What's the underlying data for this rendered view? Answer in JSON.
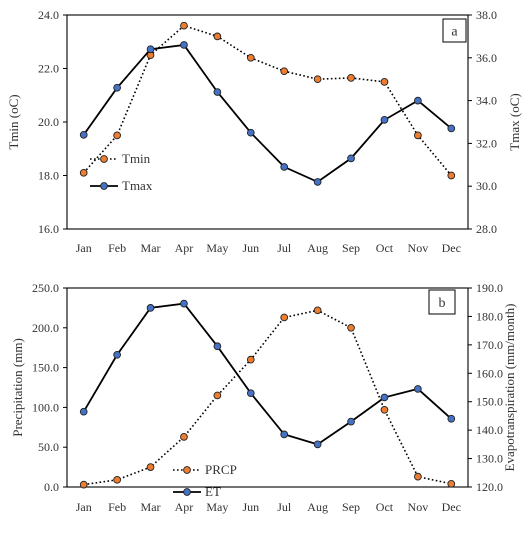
{
  "chart_data": [
    {
      "type": "line",
      "panel_label": "a",
      "categories": [
        "Jan",
        "Feb",
        "Mar",
        "Apr",
        "May",
        "Jun",
        "Jul",
        "Aug",
        "Sep",
        "Oct",
        "Nov",
        "Dec"
      ],
      "ylabel_left": "Tmin (oC)",
      "ylabel_right": "Tmax (oC)",
      "yticks_left": [
        "16.0",
        "18.0",
        "20.0",
        "22.0",
        "24.0"
      ],
      "yticks_right": [
        "28.0",
        "30.0",
        "32.0",
        "34.0",
        "36.0",
        "38.0"
      ],
      "ylim_left": [
        16,
        24
      ],
      "ylim_right": [
        28,
        38
      ],
      "legend_position": "lower-left",
      "series": [
        {
          "name": "Tmin",
          "axis": "left",
          "style": "dotted",
          "marker_color": "#ED7D31",
          "values": [
            18.1,
            19.5,
            22.5,
            23.6,
            23.2,
            22.4,
            21.9,
            21.6,
            21.65,
            21.5,
            19.5,
            18.0
          ]
        },
        {
          "name": "Tmax",
          "axis": "right",
          "style": "solid",
          "marker_color": "#4472C4",
          "values": [
            32.4,
            34.6,
            36.4,
            36.6,
            34.4,
            32.5,
            30.9,
            30.2,
            31.3,
            33.1,
            34.0,
            32.7
          ]
        }
      ]
    },
    {
      "type": "line",
      "panel_label": "b",
      "categories": [
        "Jan",
        "Feb",
        "Mar",
        "Apr",
        "May",
        "Jun",
        "Jul",
        "Aug",
        "Sep",
        "Oct",
        "Nov",
        "Dec"
      ],
      "ylabel_left": "Precipitation (mm)",
      "ylabel_right": "Evapotranspiration (mm/month)",
      "yticks_left": [
        "0.0",
        "50.0",
        "100.0",
        "150.0",
        "200.0",
        "250.0"
      ],
      "yticks_right": [
        "120.0",
        "130.0",
        "140.0",
        "150.0",
        "160.0",
        "170.0",
        "180.0",
        "190.0"
      ],
      "ylim_left": [
        0,
        250
      ],
      "ylim_right": [
        120,
        190
      ],
      "legend_position": "lower-center",
      "series": [
        {
          "name": "PRCP",
          "axis": "left",
          "style": "dotted",
          "marker_color": "#ED7D31",
          "values": [
            3,
            9,
            25,
            63,
            115,
            160,
            213,
            222,
            200,
            97,
            13,
            4
          ]
        },
        {
          "name": "ET",
          "axis": "right",
          "style": "solid",
          "marker_color": "#4472C4",
          "values": [
            146.5,
            166.5,
            183,
            184.5,
            169.5,
            153,
            138.5,
            135,
            143,
            151.5,
            154.5,
            144
          ]
        }
      ]
    }
  ]
}
